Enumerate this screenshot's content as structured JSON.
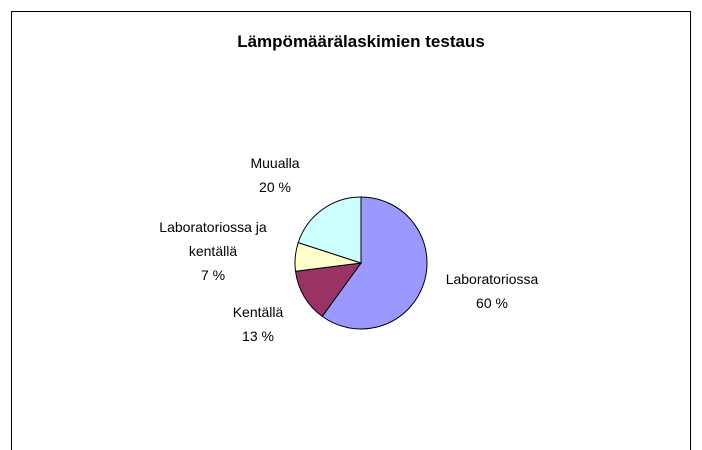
{
  "chart_data": {
    "type": "pie",
    "title": "Lämpömäärälaskimien testaus",
    "categories": [
      "Laboratoriossa",
      "Kentällä",
      "Laboratoriossa ja kentällä",
      "Muualla"
    ],
    "values": [
      60,
      13,
      7,
      20
    ],
    "value_labels": [
      "60 %",
      "13 %",
      "7 %",
      "20 %"
    ],
    "colors": [
      "#9999ff",
      "#993366",
      "#ffffcc",
      "#ccffff"
    ]
  }
}
